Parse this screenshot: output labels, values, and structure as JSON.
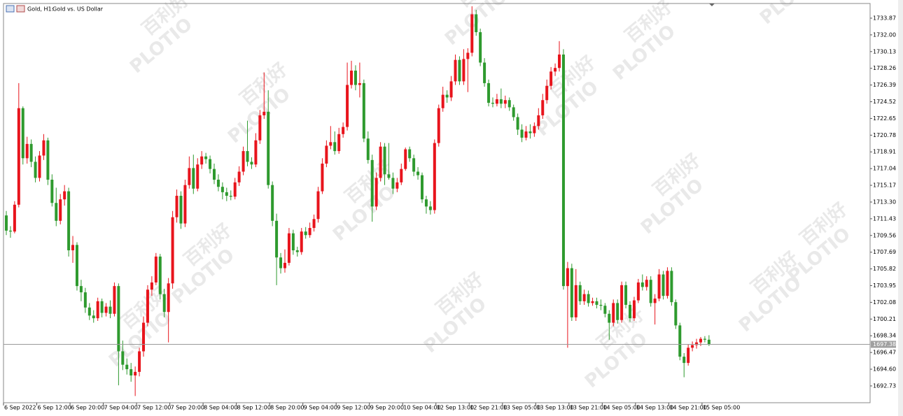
{
  "chart_data": {
    "type": "candlestick",
    "symbol": "Gold, H1:",
    "description": "Gold vs. US Dollar",
    "watermark": [
      "PLOTIO",
      "百利好"
    ],
    "bull_color": "#e8141c",
    "bear_color": "#2e9a2e",
    "ylim": [
      1690.85,
      1735.51
    ],
    "yticks": [
      1733.87,
      {
        "value": 1732,
        "label": "1732.00"
      },
      1730.13,
      1728.26,
      1726.39,
      1724.52,
      1722.65,
      1720.78,
      1718.91,
      1717.04,
      1715.17,
      {
        "value": 1713.3,
        "label": "1713.30"
      },
      1711.43,
      1709.56,
      1707.69,
      1705.82,
      1703.95,
      1702.08,
      1700.21,
      1698.34,
      1696.47,
      {
        "value": 1694.6,
        "label": "1694.60"
      },
      1692.73
    ],
    "current_price": 1697.38,
    "categories": [
      "6 Sep 2022",
      null,
      null,
      null,
      null,
      null,
      null,
      null,
      "6 Sep 12:00",
      null,
      null,
      null,
      null,
      null,
      null,
      null,
      "6 Sep 20:00",
      null,
      null,
      null,
      null,
      null,
      null,
      null,
      "7 Sep 04:00",
      null,
      null,
      null,
      null,
      null,
      null,
      null,
      "7 Sep 12:00",
      null,
      null,
      null,
      null,
      null,
      null,
      null,
      "7 Sep 20:00",
      null,
      null,
      null,
      null,
      null,
      null,
      null,
      "8 Sep 04:00",
      null,
      null,
      null,
      null,
      null,
      null,
      null,
      "8 Sep 12:00",
      null,
      null,
      null,
      null,
      null,
      null,
      null,
      "8 Sep 20:00",
      null,
      null,
      null,
      null,
      null,
      null,
      null,
      "9 Sep 04:00",
      null,
      null,
      null,
      null,
      null,
      null,
      null,
      "9 Sep 12:00",
      null,
      null,
      null,
      null,
      null,
      null,
      null,
      "9 Sep 20:00",
      null,
      null,
      null,
      null,
      null,
      null,
      null,
      "10 Sep 04:00",
      null,
      null,
      null,
      null,
      null,
      null,
      null,
      "12 Sep 13:00",
      null,
      null,
      null,
      null,
      null,
      null,
      null,
      "12 Sep 21:00",
      null,
      null,
      null,
      null,
      null,
      null,
      null,
      "13 Sep 05:00",
      null,
      null,
      null,
      null,
      null,
      null,
      null,
      "13 Sep 13:00",
      null,
      null,
      null,
      null,
      null,
      null,
      null,
      "13 Sep 21:00",
      null,
      null,
      null,
      null,
      null,
      null,
      null,
      "14 Sep 05:00",
      null,
      null,
      null,
      null,
      null,
      null,
      null,
      "14 Sep 13:00",
      null,
      null,
      null,
      null,
      null,
      null,
      null,
      "14 Sep 21:00",
      null,
      null,
      null,
      null,
      null,
      null,
      null,
      "15 Sep 05:00",
      null
    ],
    "ohlc": [
      [
        1711.8,
        1712.3,
        1709.6,
        1710.1
      ],
      [
        1710.1,
        1710.6,
        1709.3,
        1710.0
      ],
      [
        1710.0,
        1713.4,
        1709.8,
        1713.0
      ],
      [
        1713.0,
        1726.6,
        1712.7,
        1723.8
      ],
      [
        1723.8,
        1724.0,
        1717.5,
        1718.2
      ],
      [
        1718.2,
        1720.6,
        1717.6,
        1719.8
      ],
      [
        1719.8,
        1720.3,
        1717.2,
        1717.8
      ],
      [
        1717.8,
        1718.4,
        1715.5,
        1716.0
      ],
      [
        1716.0,
        1719.0,
        1715.6,
        1718.5
      ],
      [
        1718.5,
        1720.9,
        1718.0,
        1720.2
      ],
      [
        1720.2,
        1720.5,
        1715.2,
        1715.8
      ],
      [
        1715.8,
        1716.4,
        1712.8,
        1713.2
      ],
      [
        1713.2,
        1714.9,
        1710.6,
        1711.2
      ],
      [
        1711.2,
        1714.2,
        1710.8,
        1713.6
      ],
      [
        1713.6,
        1715.2,
        1712.9,
        1714.5
      ],
      [
        1714.5,
        1714.9,
        1707.2,
        1707.9
      ],
      [
        1707.9,
        1709.5,
        1706.5,
        1708.5
      ],
      [
        1708.5,
        1708.8,
        1703.4,
        1703.9
      ],
      [
        1703.9,
        1704.6,
        1702.2,
        1703.2
      ],
      [
        1703.2,
        1703.7,
        1700.9,
        1701.5
      ],
      [
        1701.5,
        1702.0,
        1700.1,
        1700.6
      ],
      [
        1700.6,
        1701.2,
        1699.8,
        1700.3
      ],
      [
        1700.3,
        1702.6,
        1700.0,
        1702.2
      ],
      [
        1702.2,
        1702.5,
        1700.4,
        1700.9
      ],
      [
        1700.9,
        1702.0,
        1700.5,
        1701.6
      ],
      [
        1701.6,
        1702.3,
        1700.3,
        1700.8
      ],
      [
        1700.8,
        1704.3,
        1700.5,
        1703.9
      ],
      [
        1703.9,
        1704.2,
        1692.8,
        1696.6
      ],
      [
        1696.6,
        1697.8,
        1694.5,
        1695.1
      ],
      [
        1695.1,
        1695.8,
        1694.0,
        1694.6
      ],
      [
        1694.6,
        1695.3,
        1693.2,
        1693.9
      ],
      [
        1693.9,
        1694.9,
        1691.6,
        1694.3
      ],
      [
        1694.3,
        1697.0,
        1693.8,
        1696.6
      ],
      [
        1696.6,
        1700.5,
        1696.0,
        1699.8
      ],
      [
        1699.8,
        1704.0,
        1699.4,
        1703.5
      ],
      [
        1703.5,
        1705.0,
        1702.8,
        1704.3
      ],
      [
        1704.3,
        1707.6,
        1704.0,
        1707.2
      ],
      [
        1707.2,
        1707.5,
        1702.4,
        1703.0
      ],
      [
        1703.0,
        1703.6,
        1700.4,
        1701.0
      ],
      [
        1701.0,
        1704.8,
        1697.6,
        1704.2
      ],
      [
        1704.2,
        1712.3,
        1703.6,
        1711.6
      ],
      [
        1711.6,
        1714.7,
        1711.0,
        1714.0
      ],
      [
        1714.0,
        1714.5,
        1710.3,
        1710.9
      ],
      [
        1710.9,
        1715.8,
        1710.5,
        1715.2
      ],
      [
        1715.2,
        1718.4,
        1714.8,
        1717.1
      ],
      [
        1717.1,
        1718.6,
        1714.2,
        1714.8
      ],
      [
        1714.8,
        1718.2,
        1714.5,
        1717.5
      ],
      [
        1717.5,
        1719.0,
        1717.0,
        1718.4
      ],
      [
        1718.4,
        1718.8,
        1717.6,
        1718.1
      ],
      [
        1718.1,
        1718.5,
        1716.5,
        1717.0
      ],
      [
        1717.0,
        1717.6,
        1715.3,
        1715.8
      ],
      [
        1715.8,
        1716.4,
        1714.5,
        1715.0
      ],
      [
        1715.0,
        1715.5,
        1713.6,
        1714.4
      ],
      [
        1714.4,
        1714.9,
        1713.4,
        1714.0
      ],
      [
        1714.0,
        1714.6,
        1713.5,
        1713.9
      ],
      [
        1713.9,
        1716.0,
        1713.6,
        1715.5
      ],
      [
        1715.5,
        1717.3,
        1715.1,
        1716.7
      ],
      [
        1716.7,
        1719.5,
        1716.3,
        1719.0
      ],
      [
        1719.0,
        1722.4,
        1717.3,
        1717.8
      ],
      [
        1717.8,
        1718.3,
        1717.0,
        1717.5
      ],
      [
        1717.5,
        1721.0,
        1717.2,
        1720.2
      ],
      [
        1720.2,
        1723.6,
        1719.8,
        1723.0
      ],
      [
        1723.0,
        1727.8,
        1722.6,
        1723.4
      ],
      [
        1723.4,
        1725.8,
        1714.8,
        1715.2
      ],
      [
        1715.2,
        1715.6,
        1710.6,
        1711.2
      ],
      [
        1711.2,
        1712.0,
        1704.0,
        1707.1
      ],
      [
        1707.1,
        1707.6,
        1705.3,
        1705.9
      ],
      [
        1705.9,
        1708.0,
        1705.4,
        1706.5
      ],
      [
        1706.5,
        1710.4,
        1706.2,
        1709.8
      ],
      [
        1709.8,
        1710.2,
        1707.4,
        1707.9
      ],
      [
        1707.9,
        1708.3,
        1707.2,
        1707.7
      ],
      [
        1707.7,
        1710.4,
        1707.4,
        1710.0
      ],
      [
        1710.0,
        1710.5,
        1709.2,
        1709.6
      ],
      [
        1709.6,
        1711.0,
        1709.3,
        1710.4
      ],
      [
        1710.4,
        1711.9,
        1710.0,
        1711.4
      ],
      [
        1711.4,
        1715.0,
        1711.0,
        1714.5
      ],
      [
        1714.5,
        1718.2,
        1714.2,
        1717.6
      ],
      [
        1717.6,
        1720.2,
        1717.2,
        1719.6
      ],
      [
        1719.6,
        1721.8,
        1719.2,
        1720.0
      ],
      [
        1720.0,
        1721.2,
        1718.6,
        1719.0
      ],
      [
        1719.0,
        1721.6,
        1718.7,
        1720.9
      ],
      [
        1720.9,
        1722.2,
        1720.5,
        1721.7
      ],
      [
        1721.7,
        1728.9,
        1721.3,
        1726.4
      ],
      [
        1726.4,
        1729.1,
        1726.0,
        1728.0
      ],
      [
        1728.0,
        1728.6,
        1725.8,
        1726.4
      ],
      [
        1726.4,
        1728.9,
        1725.0,
        1726.6
      ],
      [
        1726.6,
        1727.0,
        1720.0,
        1720.4
      ],
      [
        1720.4,
        1721.2,
        1717.6,
        1718.0
      ],
      [
        1718.0,
        1718.6,
        1711.1,
        1712.8
      ],
      [
        1712.8,
        1716.6,
        1712.4,
        1716.0
      ],
      [
        1716.0,
        1720.0,
        1715.6,
        1719.5
      ],
      [
        1719.5,
        1719.9,
        1715.2,
        1716.4
      ],
      [
        1716.4,
        1719.9,
        1715.8,
        1716.0
      ],
      [
        1716.0,
        1716.6,
        1714.2,
        1714.8
      ],
      [
        1714.8,
        1716.0,
        1714.4,
        1715.5
      ],
      [
        1715.5,
        1717.6,
        1715.2,
        1717.0
      ],
      [
        1717.0,
        1719.4,
        1716.8,
        1719.2
      ],
      [
        1719.2,
        1719.5,
        1717.8,
        1718.2
      ],
      [
        1718.2,
        1718.6,
        1716.2,
        1716.7
      ],
      [
        1716.7,
        1717.2,
        1715.8,
        1716.3
      ],
      [
        1716.3,
        1716.6,
        1713.2,
        1713.6
      ],
      [
        1713.6,
        1714.0,
        1712.0,
        1712.8
      ],
      [
        1712.8,
        1713.4,
        1711.9,
        1712.4
      ],
      [
        1712.4,
        1720.3,
        1712.0,
        1719.9
      ],
      [
        1719.9,
        1724.2,
        1719.5,
        1723.8
      ],
      [
        1723.8,
        1726.2,
        1723.4,
        1725.3
      ],
      [
        1725.3,
        1725.8,
        1724.4,
        1725.0
      ],
      [
        1725.0,
        1727.4,
        1724.6,
        1726.8
      ],
      [
        1726.8,
        1729.8,
        1726.4,
        1729.2
      ],
      [
        1729.2,
        1729.6,
        1726.4,
        1726.8
      ],
      [
        1726.8,
        1730.4,
        1726.4,
        1729.3
      ],
      [
        1729.3,
        1730.5,
        1725.6,
        1730.0
      ],
      [
        1730.0,
        1735.2,
        1729.6,
        1734.3
      ],
      [
        1734.3,
        1734.8,
        1731.9,
        1732.3
      ],
      [
        1732.3,
        1732.7,
        1728.5,
        1728.9
      ],
      [
        1728.9,
        1729.4,
        1726.2,
        1726.6
      ],
      [
        1726.6,
        1727.0,
        1724.0,
        1724.4
      ],
      [
        1724.4,
        1725.0,
        1723.9,
        1724.3
      ],
      [
        1724.3,
        1725.4,
        1724.0,
        1724.8
      ],
      [
        1724.8,
        1726.0,
        1723.8,
        1724.3
      ],
      [
        1724.3,
        1725.2,
        1723.8,
        1724.7
      ],
      [
        1724.7,
        1725.0,
        1723.5,
        1723.9
      ],
      [
        1723.9,
        1724.2,
        1722.4,
        1722.8
      ],
      [
        1722.8,
        1723.2,
        1720.8,
        1721.4
      ],
      [
        1721.4,
        1722.0,
        1720.0,
        1720.5
      ],
      [
        1720.5,
        1721.8,
        1720.2,
        1721.2
      ],
      [
        1721.2,
        1722.0,
        1720.4,
        1721.0
      ],
      [
        1721.0,
        1722.2,
        1720.6,
        1721.8
      ],
      [
        1721.8,
        1723.8,
        1721.4,
        1723.0
      ],
      [
        1723.0,
        1725.4,
        1722.6,
        1724.7
      ],
      [
        1724.7,
        1727.0,
        1724.3,
        1726.3
      ],
      [
        1726.3,
        1728.4,
        1725.9,
        1727.9
      ],
      [
        1727.9,
        1728.8,
        1727.4,
        1728.3
      ],
      [
        1728.3,
        1731.3,
        1727.9,
        1729.8
      ],
      [
        1729.8,
        1730.4,
        1703.5,
        1703.9
      ],
      [
        1703.9,
        1706.6,
        1697.0,
        1705.9
      ],
      [
        1705.9,
        1706.4,
        1700.0,
        1700.4
      ],
      [
        1700.4,
        1705.8,
        1700.0,
        1704.0
      ],
      [
        1704.0,
        1704.4,
        1701.8,
        1702.2
      ],
      [
        1702.2,
        1703.5,
        1701.8,
        1703.0
      ],
      [
        1703.0,
        1703.4,
        1701.6,
        1702.0
      ],
      [
        1702.0,
        1702.6,
        1701.7,
        1702.2
      ],
      [
        1702.2,
        1702.6,
        1701.4,
        1701.8
      ],
      [
        1701.8,
        1702.4,
        1701.2,
        1701.7
      ],
      [
        1701.7,
        1702.0,
        1700.4,
        1700.8
      ],
      [
        1700.8,
        1701.2,
        1697.9,
        1699.8
      ],
      [
        1699.8,
        1702.4,
        1699.4,
        1702.0
      ],
      [
        1702.0,
        1702.4,
        1699.7,
        1700.1
      ],
      [
        1700.1,
        1704.4,
        1699.8,
        1704.0
      ],
      [
        1704.0,
        1704.4,
        1701.4,
        1701.8
      ],
      [
        1701.8,
        1702.2,
        1699.9,
        1700.3
      ],
      [
        1700.3,
        1702.7,
        1700.0,
        1702.3
      ],
      [
        1702.3,
        1704.7,
        1702.0,
        1704.3
      ],
      [
        1704.3,
        1705.2,
        1703.4,
        1703.8
      ],
      [
        1703.8,
        1705.0,
        1703.4,
        1704.6
      ],
      [
        1704.6,
        1705.0,
        1701.6,
        1702.0
      ],
      [
        1702.0,
        1703.0,
        1699.6,
        1702.5
      ],
      [
        1702.5,
        1705.8,
        1702.2,
        1705.2
      ],
      [
        1705.2,
        1705.6,
        1702.4,
        1702.8
      ],
      [
        1702.8,
        1706.0,
        1702.5,
        1705.6
      ],
      [
        1705.6,
        1706.0,
        1701.7,
        1702.1
      ],
      [
        1702.1,
        1702.4,
        1699.1,
        1699.5
      ],
      [
        1699.5,
        1699.8,
        1695.6,
        1696.0
      ],
      [
        1696.0,
        1696.4,
        1693.7,
        1695.3
      ],
      [
        1695.3,
        1697.4,
        1695.0,
        1697.0
      ],
      [
        1697.0,
        1697.7,
        1696.6,
        1697.3
      ],
      [
        1697.3,
        1698.0,
        1696.9,
        1697.6
      ],
      [
        1697.6,
        1698.2,
        1697.2,
        1698.0
      ],
      [
        1698.0,
        1698.3,
        1697.6,
        1697.9
      ],
      [
        1697.9,
        1698.4,
        1697.2,
        1697.38
      ]
    ]
  }
}
